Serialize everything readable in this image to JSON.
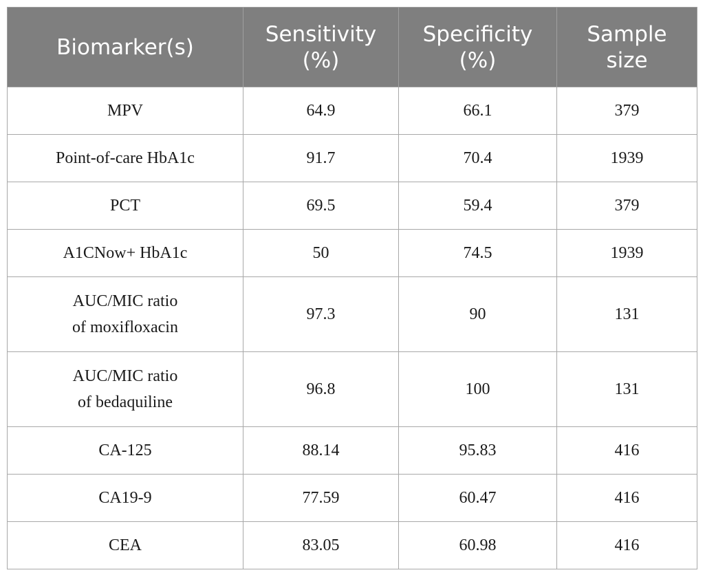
{
  "table": {
    "headers": [
      {
        "lines": [
          "Biomarker(s)"
        ]
      },
      {
        "lines": [
          "Sensitivity",
          "(%)"
        ]
      },
      {
        "lines": [
          "Specificity",
          "(%)"
        ]
      },
      {
        "lines": [
          "Sample",
          "size"
        ]
      }
    ],
    "rows": [
      {
        "biomarker": [
          "MPV"
        ],
        "sensitivity": "64.9",
        "specificity": "66.1",
        "sample_size": "379"
      },
      {
        "biomarker": [
          "Point-of-care HbA1c"
        ],
        "sensitivity": "91.7",
        "specificity": "70.4",
        "sample_size": "1939"
      },
      {
        "biomarker": [
          "PCT"
        ],
        "sensitivity": "69.5",
        "specificity": "59.4",
        "sample_size": "379"
      },
      {
        "biomarker": [
          "A1CNow+ HbA1c"
        ],
        "sensitivity": "50",
        "specificity": "74.5",
        "sample_size": "1939"
      },
      {
        "biomarker": [
          "AUC/MIC ratio",
          "of moxifloxacin"
        ],
        "sensitivity": "97.3",
        "specificity": "90",
        "sample_size": "131"
      },
      {
        "biomarker": [
          "AUC/MIC ratio",
          "of bedaquiline"
        ],
        "sensitivity": "96.8",
        "specificity": "100",
        "sample_size": "131"
      },
      {
        "biomarker": [
          "CA-125"
        ],
        "sensitivity": "88.14",
        "specificity": "95.83",
        "sample_size": "416"
      },
      {
        "biomarker": [
          "CA19-9"
        ],
        "sensitivity": "77.59",
        "specificity": "60.47",
        "sample_size": "416"
      },
      {
        "biomarker": [
          "CEA"
        ],
        "sensitivity": "83.05",
        "specificity": "60.98",
        "sample_size": "416"
      }
    ]
  }
}
